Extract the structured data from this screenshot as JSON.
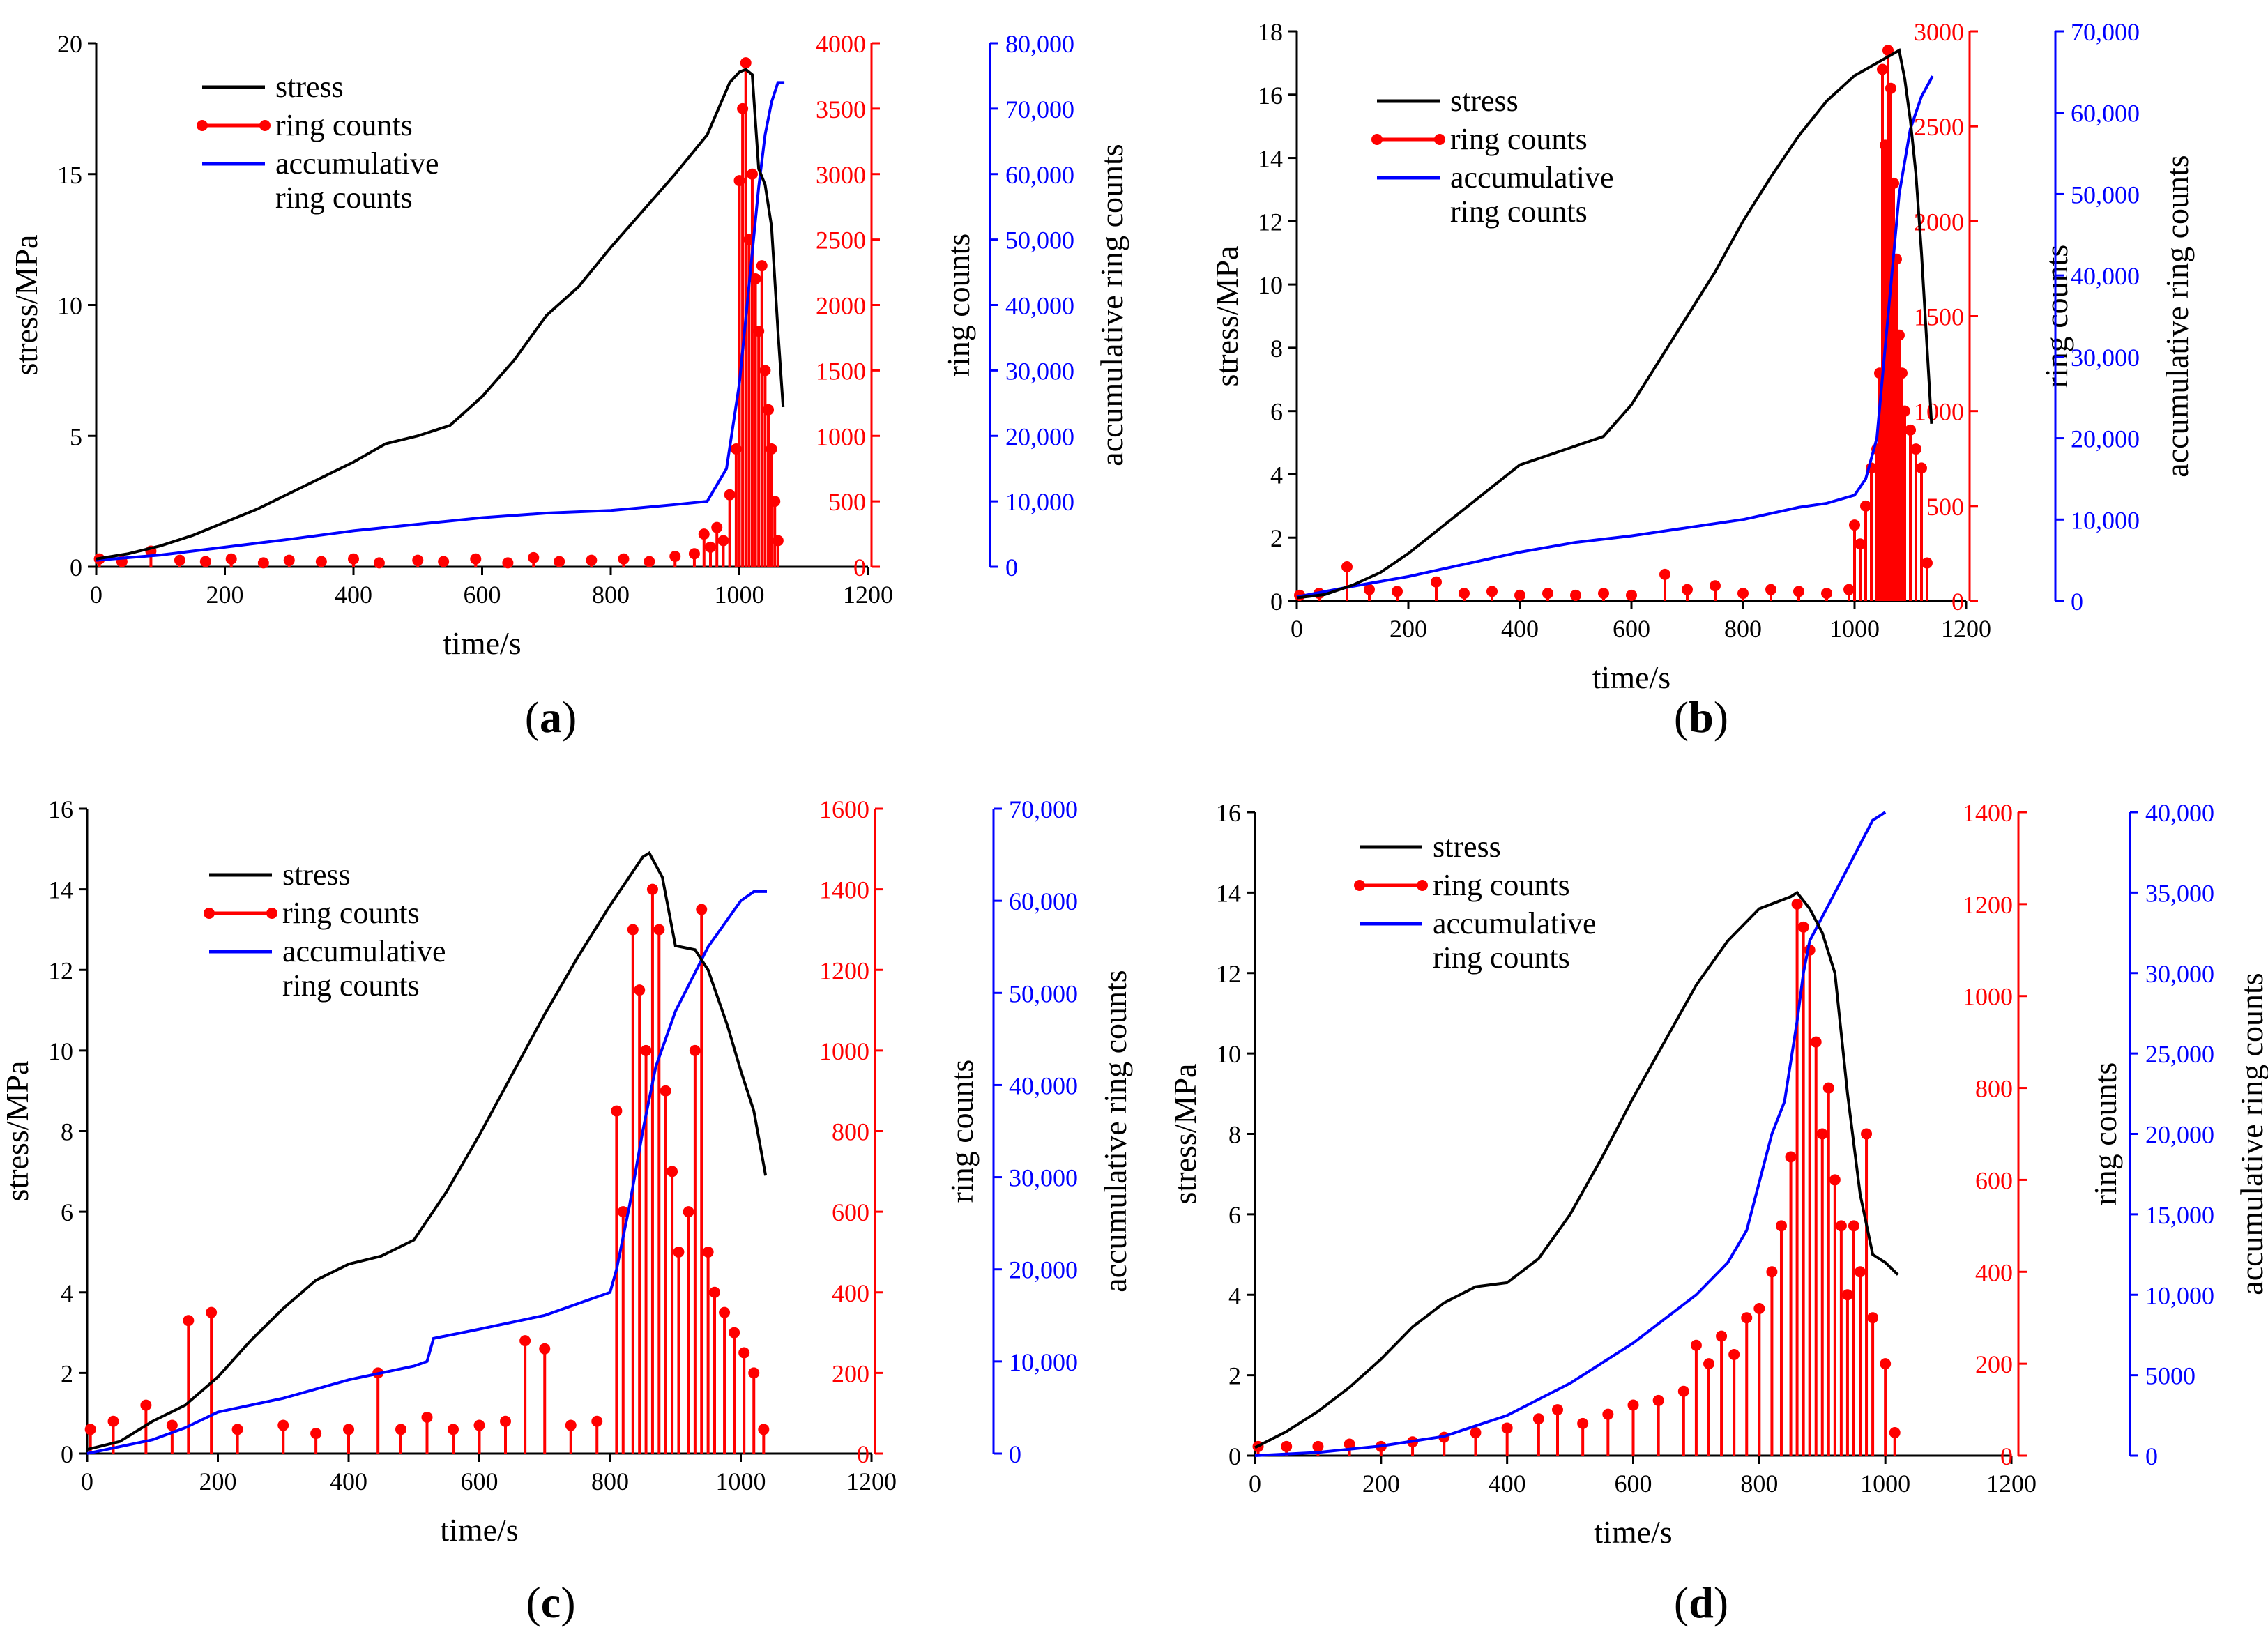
{
  "chart_data": [
    {
      "panel": "a",
      "type": "line",
      "caption_open": "(",
      "caption_letter": "a",
      "caption_close": ")",
      "xlabel": "time/s",
      "xlim": [
        0,
        1200
      ],
      "xticks": [
        0,
        200,
        400,
        600,
        800,
        1000,
        1200
      ],
      "ylabel_left": "stress/MPa",
      "ylim_left": [
        0,
        20
      ],
      "yticks_left": [
        0,
        5,
        10,
        15,
        20
      ],
      "ylabel_right1": "ring counts",
      "ylim_right1": [
        0,
        4000
      ],
      "yticks_right1": [
        "0",
        "500",
        "1000",
        "1500",
        "2000",
        "2500",
        "3000",
        "3500",
        "4000"
      ],
      "ylabel_right2": "accumulative ring counts",
      "ylim_right2": [
        0,
        80000
      ],
      "yticks_right2": [
        "0",
        "10,000",
        "20,000",
        "30,000",
        "40,000",
        "50,000",
        "60,000",
        "70,000",
        "80,000"
      ],
      "legend": [
        "stress",
        "ring counts",
        "accumulative",
        "ring counts"
      ],
      "legend_position": "top-left",
      "colors": {
        "stress": "#000000",
        "ring": "#ff0000",
        "cum": "#0000ff"
      },
      "series": [
        {
          "name": "stress",
          "axis": "left",
          "x": [
            0,
            50,
            100,
            150,
            200,
            250,
            300,
            350,
            400,
            450,
            500,
            550,
            600,
            650,
            700,
            750,
            800,
            850,
            900,
            950,
            985,
            1000,
            1010,
            1020,
            1030,
            1040,
            1050,
            1060,
            1068
          ],
          "values": [
            0.3,
            0.5,
            0.8,
            1.2,
            1.7,
            2.2,
            2.8,
            3.4,
            4.0,
            4.7,
            5.0,
            5.4,
            6.5,
            7.9,
            9.6,
            10.7,
            12.2,
            13.6,
            15.0,
            16.5,
            18.5,
            18.9,
            19.0,
            18.8,
            15.2,
            14.6,
            13.0,
            9.0,
            6.1
          ]
        },
        {
          "name": "ring counts",
          "axis": "right1",
          "x": [
            5,
            40,
            85,
            130,
            170,
            210,
            260,
            300,
            350,
            400,
            440,
            500,
            540,
            590,
            640,
            680,
            720,
            770,
            820,
            860,
            900,
            930,
            945,
            955,
            965,
            975,
            985,
            995,
            1000,
            1005,
            1010,
            1015,
            1020,
            1025,
            1030,
            1035,
            1040,
            1045,
            1050,
            1055,
            1060
          ],
          "values": [
            60,
            40,
            120,
            50,
            40,
            60,
            30,
            50,
            40,
            60,
            30,
            50,
            40,
            60,
            30,
            70,
            40,
            50,
            60,
            40,
            80,
            100,
            250,
            150,
            300,
            200,
            550,
            900,
            2950,
            3500,
            3850,
            2500,
            3000,
            2200,
            1800,
            2300,
            1500,
            1200,
            900,
            500,
            200
          ]
        },
        {
          "name": "accumulative ring counts",
          "axis": "right2",
          "x": [
            0,
            100,
            200,
            300,
            400,
            500,
            600,
            700,
            800,
            900,
            950,
            980,
            1000,
            1010,
            1020,
            1030,
            1040,
            1050,
            1060,
            1070
          ],
          "values": [
            1000,
            1800,
            3000,
            4200,
            5500,
            6500,
            7500,
            8200,
            8600,
            9500,
            10000,
            15000,
            28000,
            38000,
            48000,
            58000,
            66000,
            71000,
            74000,
            74000
          ]
        }
      ]
    },
    {
      "panel": "b",
      "type": "line",
      "caption_open": "(",
      "caption_letter": "b",
      "caption_close": ")",
      "xlabel": "time/s",
      "xlim": [
        0,
        1200
      ],
      "xticks": [
        0,
        200,
        400,
        600,
        800,
        1000,
        1200
      ],
      "ylabel_left": "stress/MPa",
      "ylim_left": [
        0,
        18
      ],
      "yticks_left": [
        0,
        2,
        4,
        6,
        8,
        10,
        12,
        14,
        16,
        18
      ],
      "ylabel_right1": "ring counts",
      "ylim_right1": [
        0,
        3000
      ],
      "yticks_right1": [
        "0",
        "500",
        "1000",
        "1500",
        "2000",
        "2500",
        "3000"
      ],
      "ylabel_right2": "accumulative ring counts",
      "ylim_right2": [
        0,
        70000
      ],
      "yticks_right2": [
        "0",
        "10,000",
        "20,000",
        "30,000",
        "40,000",
        "50,000",
        "60,000",
        "70,000"
      ],
      "legend": [
        "stress",
        "ring counts",
        "accumulative",
        "ring counts"
      ],
      "legend_position": "top-left",
      "colors": {
        "stress": "#000000",
        "ring": "#ff0000",
        "cum": "#0000ff"
      },
      "series": [
        {
          "name": "stress",
          "axis": "left",
          "x": [
            0,
            50,
            100,
            150,
            200,
            250,
            300,
            350,
            400,
            450,
            500,
            550,
            600,
            650,
            700,
            750,
            800,
            850,
            900,
            950,
            1000,
            1050,
            1080,
            1090,
            1100,
            1110,
            1120,
            1130,
            1138
          ],
          "values": [
            0.1,
            0.2,
            0.5,
            0.9,
            1.5,
            2.2,
            2.9,
            3.6,
            4.3,
            4.6,
            4.9,
            5.2,
            6.2,
            7.6,
            9.0,
            10.4,
            12.0,
            13.4,
            14.7,
            15.8,
            16.6,
            17.1,
            17.4,
            16.5,
            15.2,
            13.5,
            11.0,
            8.0,
            5.6
          ]
        },
        {
          "name": "ring counts",
          "axis": "right1",
          "x": [
            5,
            40,
            90,
            130,
            180,
            250,
            300,
            350,
            400,
            450,
            500,
            550,
            600,
            660,
            700,
            750,
            800,
            850,
            900,
            950,
            990,
            1000,
            1010,
            1020,
            1030,
            1040,
            1045,
            1050,
            1055,
            1060,
            1065,
            1070,
            1075,
            1080,
            1085,
            1090,
            1100,
            1110,
            1120,
            1130
          ],
          "values": [
            30,
            40,
            180,
            60,
            50,
            100,
            40,
            50,
            30,
            40,
            30,
            40,
            30,
            140,
            60,
            80,
            40,
            60,
            50,
            40,
            60,
            400,
            300,
            500,
            700,
            800,
            1200,
            2800,
            2400,
            2900,
            2700,
            2200,
            1800,
            1400,
            1200,
            1000,
            900,
            800,
            700,
            200
          ]
        },
        {
          "name": "accumulative ring counts",
          "axis": "right2",
          "x": [
            0,
            100,
            200,
            300,
            400,
            500,
            600,
            700,
            800,
            900,
            950,
            1000,
            1020,
            1040,
            1060,
            1080,
            1100,
            1120,
            1140
          ],
          "values": [
            500,
            1800,
            3000,
            4500,
            6000,
            7200,
            8000,
            9000,
            10000,
            11500,
            12000,
            13000,
            15000,
            20000,
            35000,
            50000,
            58000,
            62000,
            64500
          ]
        }
      ]
    },
    {
      "panel": "c",
      "type": "line",
      "caption_open": "(",
      "caption_letter": "c",
      "caption_close": ")",
      "xlabel": "time/s",
      "xlim": [
        0,
        1200
      ],
      "xticks": [
        0,
        200,
        400,
        600,
        800,
        1000,
        1200
      ],
      "ylabel_left": "stress/MPa",
      "ylim_left": [
        0,
        16
      ],
      "yticks_left": [
        0,
        2,
        4,
        6,
        8,
        10,
        12,
        14,
        16
      ],
      "ylabel_right1": "ring counts",
      "ylim_right1": [
        0,
        1600
      ],
      "yticks_right1": [
        "0",
        "200",
        "400",
        "600",
        "800",
        "1000",
        "1200",
        "1400",
        "1600"
      ],
      "ylabel_right2": "accumulative ring counts",
      "ylim_right2": [
        0,
        70000
      ],
      "yticks_right2": [
        "0",
        "10,000",
        "20,000",
        "30,000",
        "40,000",
        "50,000",
        "60,000",
        "70,000"
      ],
      "legend": [
        "stress",
        "ring counts",
        "accumulative",
        "ring counts"
      ],
      "legend_position": "top-left",
      "colors": {
        "stress": "#000000",
        "ring": "#ff0000",
        "cum": "#0000ff"
      },
      "series": [
        {
          "name": "stress",
          "axis": "left",
          "x": [
            0,
            50,
            100,
            150,
            200,
            250,
            300,
            350,
            400,
            450,
            500,
            550,
            600,
            650,
            700,
            750,
            800,
            850,
            860,
            880,
            900,
            930,
            950,
            980,
            1000,
            1020,
            1038
          ],
          "values": [
            0.1,
            0.3,
            0.8,
            1.2,
            1.9,
            2.8,
            3.6,
            4.3,
            4.7,
            4.9,
            5.3,
            6.5,
            7.9,
            9.4,
            10.9,
            12.3,
            13.6,
            14.8,
            14.9,
            14.3,
            12.6,
            12.5,
            12.0,
            10.6,
            9.5,
            8.5,
            6.9
          ]
        },
        {
          "name": "ring counts",
          "axis": "right1",
          "x": [
            5,
            40,
            90,
            130,
            155,
            190,
            230,
            300,
            350,
            400,
            445,
            480,
            520,
            560,
            600,
            640,
            670,
            700,
            740,
            780,
            810,
            820,
            835,
            845,
            855,
            865,
            875,
            885,
            895,
            905,
            920,
            930,
            940,
            950,
            960,
            975,
            990,
            1005,
            1020,
            1035
          ],
          "values": [
            60,
            80,
            120,
            70,
            330,
            350,
            60,
            70,
            50,
            60,
            200,
            60,
            90,
            60,
            70,
            80,
            280,
            260,
            70,
            80,
            850,
            600,
            1300,
            1150,
            1000,
            1400,
            1300,
            900,
            700,
            500,
            600,
            1000,
            1350,
            500,
            400,
            350,
            300,
            250,
            200,
            60
          ]
        },
        {
          "name": "accumulative ring counts",
          "axis": "right2",
          "x": [
            0,
            100,
            150,
            200,
            300,
            400,
            500,
            520,
            530,
            600,
            700,
            800,
            810,
            830,
            850,
            870,
            900,
            950,
            1000,
            1020,
            1040
          ],
          "values": [
            0,
            1500,
            2800,
            4500,
            6000,
            8000,
            9500,
            10000,
            12500,
            13500,
            15000,
            17500,
            20000,
            27000,
            35000,
            42000,
            48000,
            55000,
            60000,
            61000,
            61000
          ]
        }
      ]
    },
    {
      "panel": "d",
      "type": "line",
      "caption_open": "(",
      "caption_letter": "d",
      "caption_close": ")",
      "xlabel": "time/s",
      "xlim": [
        0,
        1200
      ],
      "xticks": [
        0,
        200,
        400,
        600,
        800,
        1000,
        1200
      ],
      "ylabel_left": "stress/MPa",
      "ylim_left": [
        0,
        16
      ],
      "yticks_left": [
        0,
        2,
        4,
        6,
        8,
        10,
        12,
        14,
        16
      ],
      "ylabel_right1": "ring counts",
      "ylim_right1": [
        0,
        1400
      ],
      "yticks_right1": [
        "0",
        "200",
        "400",
        "600",
        "800",
        "1000",
        "1200",
        "1400"
      ],
      "ylabel_right2": "accumulative ring counts",
      "ylim_right2": [
        0,
        40000
      ],
      "yticks_right2": [
        "0",
        "5000",
        "10,000",
        "15,000",
        "20,000",
        "25,000",
        "30,000",
        "35,000",
        "40,000"
      ],
      "legend": [
        "stress",
        "ring counts",
        "accumulative",
        "ring counts"
      ],
      "legend_position": "top-center",
      "colors": {
        "stress": "#000000",
        "ring": "#ff0000",
        "cum": "#0000ff"
      },
      "series": [
        {
          "name": "stress",
          "axis": "left",
          "x": [
            0,
            50,
            100,
            150,
            200,
            250,
            300,
            350,
            400,
            450,
            500,
            550,
            600,
            650,
            700,
            750,
            800,
            850,
            860,
            880,
            900,
            920,
            940,
            960,
            980,
            1000,
            1020
          ],
          "values": [
            0.2,
            0.6,
            1.1,
            1.7,
            2.4,
            3.2,
            3.8,
            4.2,
            4.3,
            4.9,
            6.0,
            7.4,
            8.9,
            10.3,
            11.7,
            12.8,
            13.6,
            13.9,
            14.0,
            13.6,
            13.0,
            12.0,
            9.0,
            6.5,
            5.0,
            4.8,
            4.5
          ]
        },
        {
          "name": "ring counts",
          "axis": "right1",
          "x": [
            5,
            50,
            100,
            150,
            200,
            250,
            300,
            350,
            400,
            450,
            480,
            520,
            560,
            600,
            640,
            680,
            700,
            720,
            740,
            760,
            780,
            800,
            820,
            835,
            850,
            860,
            870,
            880,
            890,
            900,
            910,
            920,
            930,
            940,
            950,
            960,
            970,
            980,
            1000,
            1015
          ],
          "values": [
            20,
            20,
            20,
            25,
            20,
            30,
            40,
            50,
            60,
            80,
            100,
            70,
            90,
            110,
            120,
            140,
            240,
            200,
            260,
            220,
            300,
            320,
            400,
            500,
            650,
            1200,
            1150,
            1100,
            900,
            700,
            800,
            600,
            500,
            350,
            500,
            400,
            700,
            300,
            200,
            50
          ]
        },
        {
          "name": "accumulative ring counts",
          "axis": "right2",
          "x": [
            0,
            100,
            200,
            300,
            400,
            500,
            600,
            650,
            700,
            750,
            780,
            800,
            820,
            840,
            860,
            870,
            880,
            900,
            920,
            940,
            960,
            980,
            1000
          ],
          "values": [
            0,
            200,
            600,
            1200,
            2500,
            4500,
            7000,
            8500,
            10000,
            12000,
            14000,
            17000,
            20000,
            22000,
            27000,
            30000,
            32000,
            33500,
            35000,
            36500,
            38000,
            39500,
            40000
          ]
        }
      ]
    }
  ]
}
